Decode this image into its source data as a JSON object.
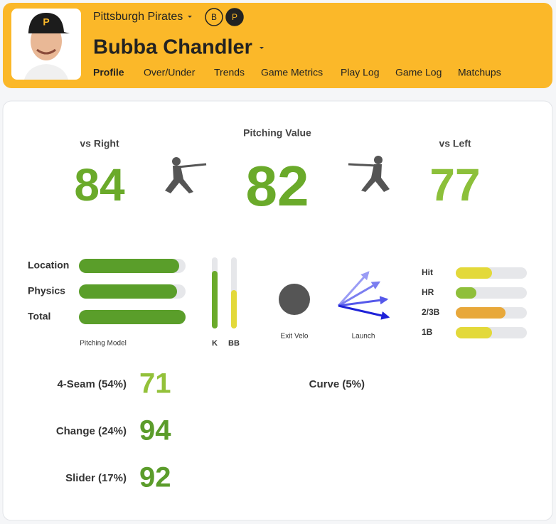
{
  "header": {
    "team": "Pittsburgh Pirates",
    "badges": [
      "B",
      "P"
    ],
    "player": "Bubba Chandler",
    "tabs": [
      "Profile",
      "Over/Under",
      "Trends",
      "Game Metrics",
      "Play Log",
      "Game Log",
      "Matchups"
    ],
    "active_tab": 0
  },
  "scores": [
    {
      "label": "vs Right",
      "value": 84,
      "color": "#6aaa2a"
    },
    {
      "label": "Pitching Value",
      "value": 82,
      "color": "#6aaa2a"
    },
    {
      "label": "vs Left",
      "value": 77,
      "color": "#8cc03a"
    }
  ],
  "pitching_model": {
    "label": "Pitching Model",
    "bars": [
      {
        "label": "Location",
        "value": 94
      },
      {
        "label": "Physics",
        "value": 92
      },
      {
        "label": "Total",
        "value": 100
      }
    ]
  },
  "plate_discipline": [
    {
      "label": "K",
      "value": 81,
      "color": "#6aaa2a"
    },
    {
      "label": "BB",
      "value": 54,
      "color": "#e3d93a"
    }
  ],
  "contact": {
    "exit_velo": "Exit Velo",
    "launch": "Launch"
  },
  "outcomes": [
    {
      "label": "Hit",
      "value": 51,
      "color": "#e3d93a"
    },
    {
      "label": "HR",
      "value": 29,
      "color": "#8fbf3a"
    },
    {
      "label": "2/3B",
      "value": 70,
      "color": "#e8a83a"
    },
    {
      "label": "1B",
      "value": 51,
      "color": "#e3d93a"
    }
  ],
  "pitches": [
    {
      "label": "4-Seam (54%)",
      "score": 71,
      "color": "#93c13a"
    },
    {
      "label": "Change (24%)",
      "score": 94,
      "color": "#5b9c2b"
    },
    {
      "label": "Slider (17%)",
      "score": 92,
      "color": "#5b9c2b"
    },
    {
      "label": "Curve (5%)"
    }
  ]
}
